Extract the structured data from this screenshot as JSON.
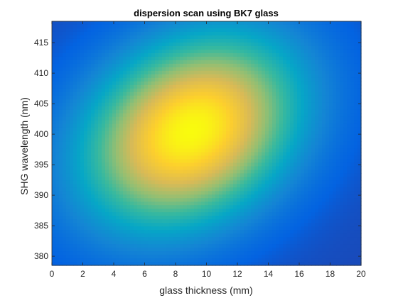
{
  "chart_data": {
    "type": "heatmap",
    "title": "dispersion scan using BK7 glass",
    "xlabel": "glass thickness (mm)",
    "ylabel": "SHG wavelength (nm)",
    "xlim": [
      0,
      20
    ],
    "ylim": [
      378.5,
      418.5
    ],
    "xticks": [
      0,
      2,
      4,
      6,
      8,
      10,
      12,
      14,
      16,
      18,
      20
    ],
    "yticks": [
      380,
      385,
      390,
      395,
      400,
      405,
      410,
      415
    ],
    "colormap": "parula",
    "grid": false,
    "peak": {
      "x": 9,
      "y": 400.5
    },
    "intensity_model": {
      "center_x": 9,
      "center_y": 400.5,
      "slope_nm_per_mm": 0.6,
      "sigma_along_mm": 4.8,
      "sigma_across_nm": 10.5,
      "background_level": 0.07
    }
  },
  "colors": {
    "parula": [
      "#352a87",
      "#0363e1",
      "#1485d4",
      "#06a7c6",
      "#38b99e",
      "#92bf73",
      "#d9ba56",
      "#fcce2e",
      "#f9fb0e"
    ],
    "axis": "#262626"
  }
}
